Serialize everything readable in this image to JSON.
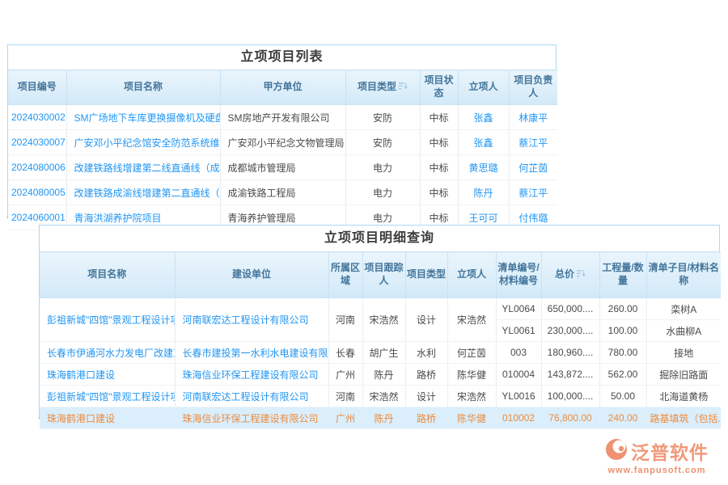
{
  "colors": {
    "accent_blue": "#2b9df3",
    "link_blue": "#2196f3",
    "header_text": "#43759b",
    "header_bg": "#d9ecf9",
    "highlight_text": "#ec8b3d",
    "highlight_bg": "#dbeefb",
    "logo_salmon": "#ef9173"
  },
  "list_table": {
    "title": "立项项目列表",
    "columns": [
      {
        "label": "项目编号",
        "sortable": false
      },
      {
        "label": "项目名称",
        "sortable": false
      },
      {
        "label": "甲方单位",
        "sortable": false
      },
      {
        "label": "项目类型",
        "sortable": true
      },
      {
        "label": "项目状态",
        "sortable": false
      },
      {
        "label": "立项人",
        "sortable": false
      },
      {
        "label": "项目负责人",
        "sortable": false
      }
    ],
    "rows": [
      {
        "id": "2024030002",
        "name": "SM广场地下车库更换摄像机及硬盘项目",
        "party": "SM房地产开发有限公司",
        "type": "安防",
        "status": "中标",
        "initiator": "张鑫",
        "manager": "林康平"
      },
      {
        "id": "2024030007",
        "name": "广安邓小平纪念馆安全防范系统维护...",
        "party": "广安邓小平纪念文物管理局",
        "type": "安防",
        "status": "中标",
        "initiator": "张鑫",
        "manager": "蔡江平"
      },
      {
        "id": "2024080006",
        "name": "改建铁路线增建第二线直通线（成都-...",
        "party": "成都城市管理局",
        "type": "电力",
        "status": "中标",
        "initiator": "黄思璐",
        "manager": "何芷茵"
      },
      {
        "id": "2024080005",
        "name": "改建铁路成渝线增建第二直通线（成...",
        "party": "成渝铁路工程局",
        "type": "电力",
        "status": "中标",
        "initiator": "陈丹",
        "manager": "蔡江平"
      },
      {
        "id": "2024060001",
        "name": "青海洪湖养护院项目",
        "party": "青海养护管理局",
        "type": "电力",
        "status": "中标",
        "initiator": "王可可",
        "manager": "付伟璐"
      }
    ]
  },
  "detail_table": {
    "title": "立项项目明细查询",
    "columns": [
      {
        "label": "项目名称",
        "sortable": false
      },
      {
        "label": "建设单位",
        "sortable": false
      },
      {
        "label": "所属区域",
        "sortable": false
      },
      {
        "label": "项目跟踪人",
        "sortable": false
      },
      {
        "label": "项目类型",
        "sortable": false
      },
      {
        "label": "立项人",
        "sortable": false
      },
      {
        "label": "清单编号/材料编号",
        "sortable": false
      },
      {
        "label": "总价",
        "sortable": true
      },
      {
        "label": "工程量/数量",
        "sortable": false
      },
      {
        "label": "清单子目/材料名称",
        "sortable": false
      }
    ],
    "rows": [
      {
        "project": "彭祖新城\"四馆\"景观工程设计项目",
        "unit": "河南联宏达工程设计有限公司",
        "region": "河南",
        "tracker": "宋浩然",
        "type": "设计",
        "initiator": "宋浩然",
        "span": 2,
        "merged": false,
        "highlighted": false,
        "code": "YL0064",
        "total": "650,000....",
        "qty": "260.00",
        "item": "栾树A"
      },
      {
        "span": 0,
        "merged": true,
        "highlighted": false,
        "code": "YL0061",
        "total": "230,000....",
        "qty": "100.00",
        "item": "水曲柳A"
      },
      {
        "project": "长春市伊通河水力发电厂改建工程",
        "unit": "长春市建投第一水利水电建设有限公司",
        "region": "长春",
        "tracker": "胡广生",
        "type": "水利",
        "initiator": "何芷茵",
        "span": 1,
        "merged": false,
        "highlighted": false,
        "code": "003",
        "total": "180,960....",
        "qty": "780.00",
        "item": "接地"
      },
      {
        "project": "珠海鹤港口建设",
        "unit": "珠海信业环保工程建设有限公司",
        "region": "广州",
        "tracker": "陈丹",
        "type": "路桥",
        "initiator": "陈华健",
        "span": 1,
        "merged": false,
        "highlighted": false,
        "code": "010004",
        "total": "143,872....",
        "qty": "562.00",
        "item": "掘除旧路面"
      },
      {
        "project": "彭祖新城\"四馆\"景观工程设计项目",
        "unit": "河南联宏达工程设计有限公司",
        "region": "河南",
        "tracker": "宋浩然",
        "type": "设计",
        "initiator": "宋浩然",
        "span": 1,
        "merged": false,
        "highlighted": false,
        "code": "YL0016",
        "total": "100,000....",
        "qty": "50.00",
        "item": "北海道黄杨"
      },
      {
        "project": "珠海鹤港口建设",
        "unit": "珠海信业环保工程建设有限公司",
        "region": "广州",
        "tracker": "陈丹",
        "type": "路桥",
        "initiator": "陈华健",
        "span": 1,
        "merged": false,
        "highlighted": true,
        "code": "010002",
        "total": "76,800.00",
        "qty": "240.00",
        "item": "路基填筑（包括..."
      }
    ]
  },
  "logo": {
    "name": "泛普软件",
    "url": "www.fanpusoft.com"
  }
}
